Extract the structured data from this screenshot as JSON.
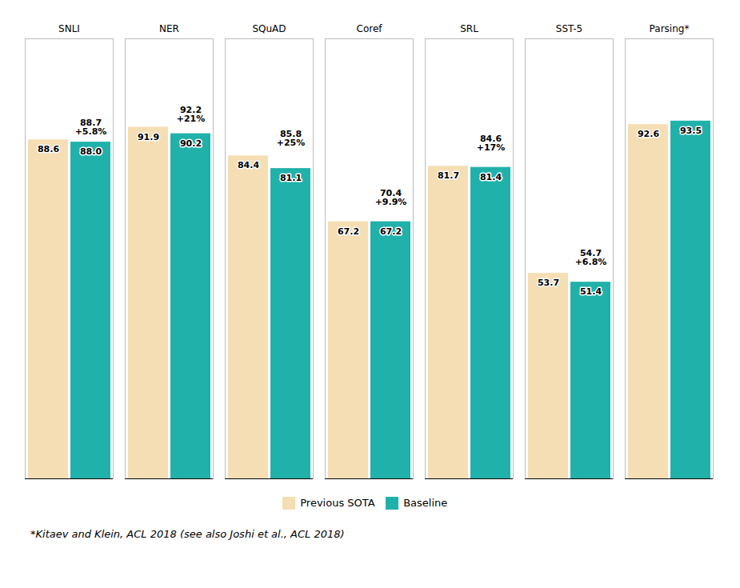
{
  "chart_data": {
    "type": "bar",
    "categories": [
      "SNLI",
      "NER",
      "SQuAD",
      "Coref",
      "SRL",
      "SST-5",
      "Parsing"
    ],
    "series": [
      {
        "name": "Previous SOTA",
        "color": "#F5DEB3",
        "values": [
          88.6,
          91.9,
          84.4,
          67.2,
          81.7,
          53.7,
          92.6
        ],
        "value_labels": [
          "88.6",
          "91.9",
          "84.4",
          "67.2",
          "81.7",
          "53.7",
          "92.6"
        ]
      },
      {
        "name": "Baseline",
        "color": "#20B2AA",
        "values": [
          88.0,
          90.2,
          81.1,
          67.2,
          81.4,
          51.4,
          93.5
        ],
        "value_labels": [
          "88.0",
          "90.2",
          "81.1",
          "67.2",
          "81.4",
          "51.4",
          "93.5"
        ]
      }
    ],
    "annotations": [
      {
        "category": "SNLI",
        "value": 88.7,
        "label": "+5.8%"
      },
      {
        "category": "NER",
        "value": 92.2,
        "label": "+21%"
      },
      {
        "category": "SQuAD",
        "value": 85.8,
        "label": "+25%"
      },
      {
        "category": "Coref",
        "value": 70.4,
        "label": "+9.9%"
      },
      {
        "category": "SRL",
        "value": 84.6,
        "label": "+17%"
      },
      {
        "category": "SST-5",
        "value": 54.7,
        "label": "+6.8%"
      },
      {
        "category": "Parsing",
        "label": "*"
      }
    ],
    "footnote": "*Kitaev and Klein, ACL 2018   (see also Joshi et al., ACL 2018)",
    "ylim": [
      0,
      115
    ],
    "data_labels": true,
    "tick_labels": "x",
    "legend": "bottom",
    "grid": false
  }
}
